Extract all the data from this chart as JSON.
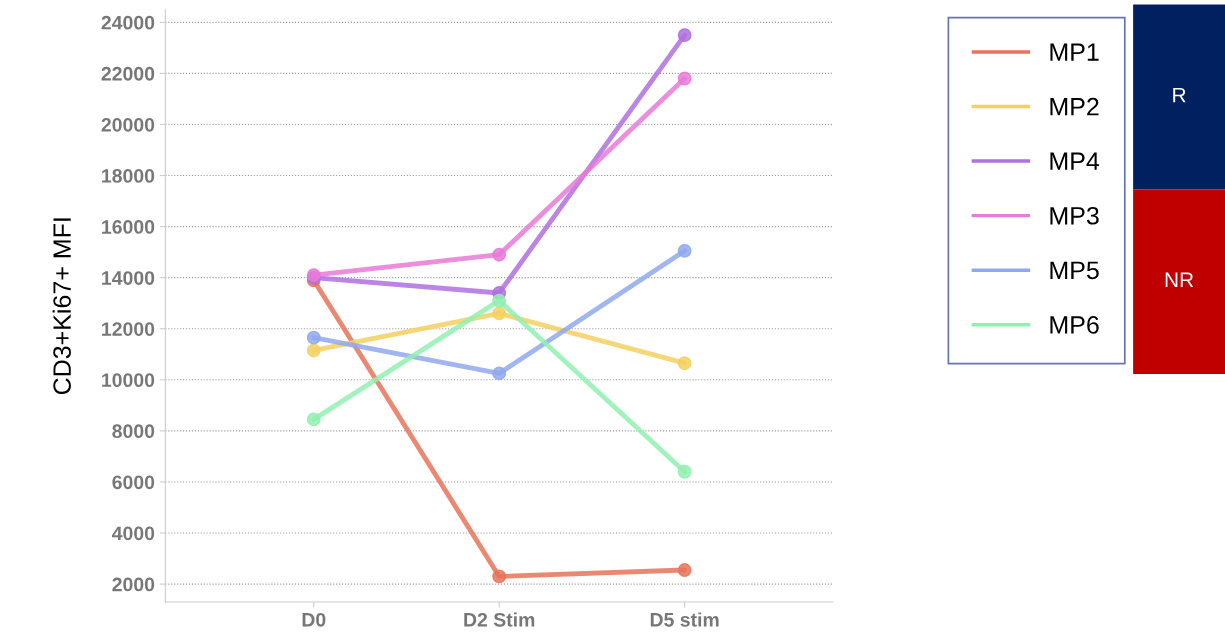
{
  "chart_data": {
    "type": "line",
    "ylabel": "CD3+Ki67+ MFI",
    "categories": [
      "D0",
      "D2 Stim",
      "D5 stim"
    ],
    "series": [
      {
        "name": "MP1",
        "color": "#e8735a",
        "values": [
          13900,
          2300,
          2550
        ]
      },
      {
        "name": "MP2",
        "color": "#f5d060",
        "values": [
          11150,
          12600,
          10650
        ]
      },
      {
        "name": "MP4",
        "color": "#b070e0",
        "values": [
          14000,
          13400,
          23500
        ]
      },
      {
        "name": "MP3",
        "color": "#e87ad8",
        "values": [
          14100,
          14900,
          21800
        ]
      },
      {
        "name": "MP5",
        "color": "#90a8ee",
        "values": [
          11650,
          10250,
          15050
        ]
      },
      {
        "name": "MP6",
        "color": "#90f0b0",
        "values": [
          8450,
          13100,
          6400
        ]
      }
    ],
    "ylim": [
      1300,
      24500
    ],
    "yticks": [
      2000,
      4000,
      6000,
      8000,
      10000,
      12000,
      14000,
      16000,
      18000,
      20000,
      22000,
      24000
    ],
    "grid": "y",
    "legend": "right",
    "marker": "circle",
    "line_style": "solid",
    "annotations": [
      "R",
      "NR"
    ]
  }
}
